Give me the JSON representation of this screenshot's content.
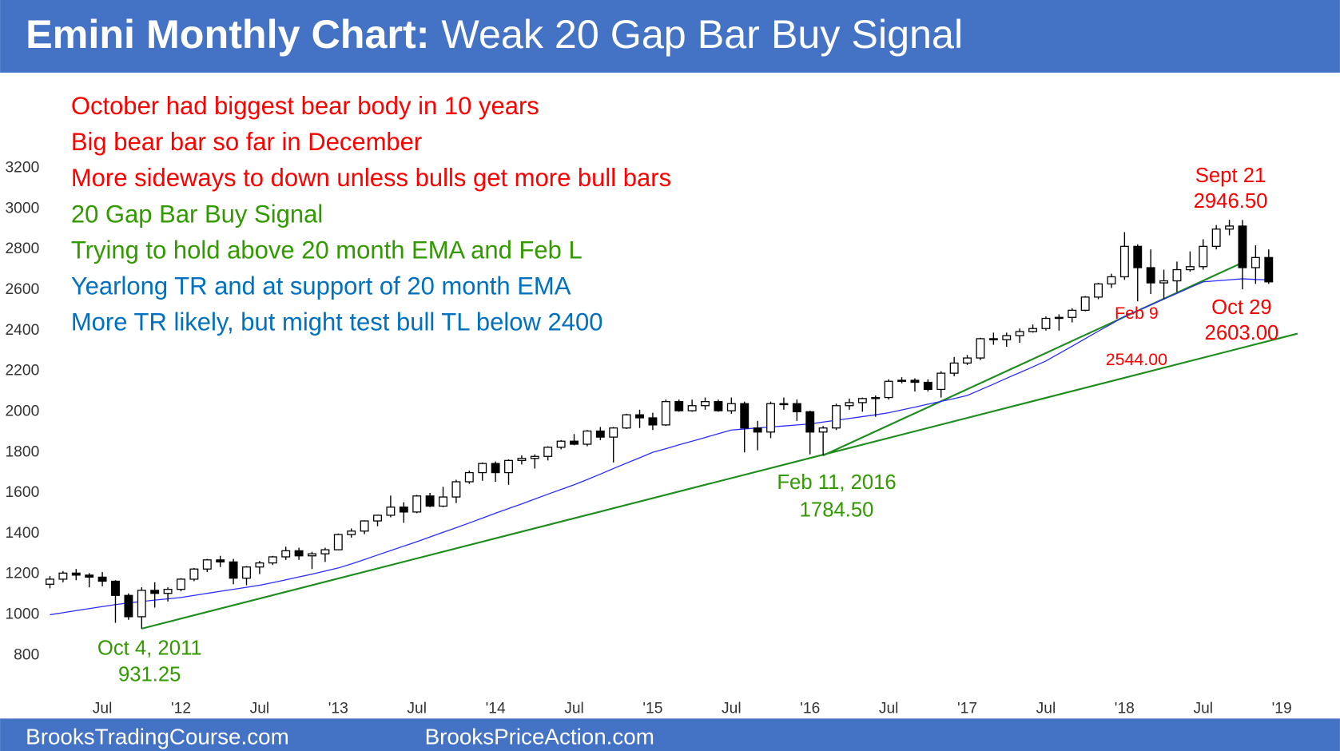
{
  "chart_data": {
    "type": "candlestick",
    "title": "Emini Monthly Chart:",
    "subtitle": "Weak 20 Gap Bar Buy Signal",
    "footer": [
      "BrooksTradingCourse.com",
      "BrooksPriceAction.com"
    ],
    "notes": [
      {
        "text": "October had biggest bear body in 10 years",
        "color": "#ff0000"
      },
      {
        "text": "Big bear bar so far in December",
        "color": "#ff0000"
      },
      {
        "text": "More sideways to down unless bulls get more bull bars",
        "color": "#ff0000"
      },
      {
        "text": "20 Gap Bar Buy Signal",
        "color": "#339900"
      },
      {
        "text": "Trying to hold above 20 month EMA and Feb L",
        "color": "#339900"
      },
      {
        "text": "Yearlong TR and at support of 20 month EMA",
        "color": "#0070c0"
      },
      {
        "text": "More TR likely, but might test bull TL below 2400",
        "color": "#0070c0"
      }
    ],
    "annotations": [
      {
        "lines": [
          "Sept 21",
          "2946.50"
        ],
        "color": "#ff0000"
      },
      {
        "lines": [
          "Oct 29",
          "2603.00"
        ],
        "color": "#ff0000"
      },
      {
        "lines": [
          "Feb 9",
          "2544.00"
        ],
        "color": "#ff0000"
      },
      {
        "lines": [
          "Feb 11, 2016",
          "1784.50"
        ],
        "color": "#339900"
      },
      {
        "lines": [
          "Oct 4, 2011",
          "931.25"
        ],
        "color": "#339900"
      }
    ],
    "xlim": [
      2011.0833,
      2019.25
    ],
    "xticks": [
      {
        "value": 2011.5,
        "label": "Jul"
      },
      {
        "value": 2012,
        "label": "'12"
      },
      {
        "value": 2012.5,
        "label": "Jul"
      },
      {
        "value": 2013,
        "label": "'13"
      },
      {
        "value": 2013.5,
        "label": "Jul"
      },
      {
        "value": 2014,
        "label": "'14"
      },
      {
        "value": 2014.5,
        "label": "Jul"
      },
      {
        "value": 2015,
        "label": "'15"
      },
      {
        "value": 2015.5,
        "label": "Jul"
      },
      {
        "value": 2016,
        "label": "'16"
      },
      {
        "value": 2016.5,
        "label": "Jul"
      },
      {
        "value": 2017,
        "label": "'17"
      },
      {
        "value": 2017.5,
        "label": "Jul"
      },
      {
        "value": 2018,
        "label": "'18"
      },
      {
        "value": 2018.5,
        "label": "Jul"
      },
      {
        "value": 2019,
        "label": "'19"
      }
    ],
    "ylim": [
      602,
      3650
    ],
    "yticks": [
      800,
      1000,
      1200,
      1400,
      1600,
      1800,
      2000,
      2200,
      2400,
      2600,
      2800,
      3000,
      3200
    ],
    "x": [
      2011.1667,
      2011.25,
      2011.3333,
      2011.4167,
      2011.5,
      2011.5833,
      2011.6667,
      2011.75,
      2011.8333,
      2011.9167,
      2012.0,
      2012.0833,
      2012.1667,
      2012.25,
      2012.3333,
      2012.4167,
      2012.5,
      2012.5833,
      2012.6667,
      2012.75,
      2012.8333,
      2012.9167,
      2013.0,
      2013.0833,
      2013.1667,
      2013.25,
      2013.3333,
      2013.4167,
      2013.5,
      2013.5833,
      2013.6667,
      2013.75,
      2013.8333,
      2013.9167,
      2014.0,
      2014.0833,
      2014.1667,
      2014.25,
      2014.3333,
      2014.4167,
      2014.5,
      2014.5833,
      2014.6667,
      2014.75,
      2014.8333,
      2014.9167,
      2015.0,
      2015.0833,
      2015.1667,
      2015.25,
      2015.3333,
      2015.4167,
      2015.5,
      2015.5833,
      2015.6667,
      2015.75,
      2015.8333,
      2015.9167,
      2016.0,
      2016.0833,
      2016.1667,
      2016.25,
      2016.3333,
      2016.4167,
      2016.5,
      2016.5833,
      2016.6667,
      2016.75,
      2016.8333,
      2016.9167,
      2017.0,
      2017.0833,
      2017.1667,
      2017.25,
      2017.3333,
      2017.4167,
      2017.5,
      2017.5833,
      2017.6667,
      2017.75,
      2017.8333,
      2017.9167,
      2018.0,
      2018.0833,
      2018.1667,
      2018.25,
      2018.3333,
      2018.4167,
      2018.5,
      2018.5833,
      2018.6667,
      2018.75,
      2018.8333,
      2018.9167
    ],
    "open": [
      1150,
      1175,
      1205,
      1195,
      1185,
      1165,
      1095,
      990,
      1120,
      1105,
      1125,
      1175,
      1225,
      1270,
      1260,
      1180,
      1235,
      1255,
      1285,
      1315,
      1290,
      1300,
      1320,
      1395,
      1412,
      1462,
      1490,
      1530,
      1506,
      1585,
      1535,
      1580,
      1655,
      1700,
      1745,
      1700,
      1760,
      1770,
      1780,
      1825,
      1855,
      1840,
      1905,
      1875,
      1920,
      1985,
      1970,
      1935,
      2050,
      2005,
      2030,
      2050,
      2005,
      2040,
      1920,
      1900,
      2040,
      2040,
      2000,
      1900,
      1920,
      2030,
      2045,
      2065,
      2070,
      2150,
      2155,
      2145,
      2110,
      2190,
      2240,
      2265,
      2360,
      2355,
      2375,
      2395,
      2410,
      2460,
      2465,
      2500,
      2565,
      2630,
      2665,
      2815,
      2710,
      2635,
      2645,
      2700,
      2715,
      2815,
      2900,
      2915,
      2710,
      2760
    ],
    "high": [
      1190,
      1215,
      1225,
      1205,
      1210,
      1170,
      1105,
      1135,
      1160,
      1135,
      1180,
      1230,
      1275,
      1290,
      1275,
      1240,
      1265,
      1290,
      1335,
      1330,
      1310,
      1330,
      1400,
      1425,
      1465,
      1493,
      1587,
      1554,
      1590,
      1600,
      1630,
      1665,
      1710,
      1750,
      1755,
      1765,
      1785,
      1790,
      1830,
      1860,
      1890,
      1910,
      1925,
      1925,
      1990,
      2010,
      1995,
      2060,
      2060,
      2060,
      2070,
      2060,
      2070,
      2050,
      1955,
      2050,
      2070,
      2060,
      2005,
      1930,
      2040,
      2065,
      2070,
      2080,
      2160,
      2170,
      2165,
      2160,
      2200,
      2270,
      2280,
      2365,
      2390,
      2390,
      2410,
      2430,
      2470,
      2480,
      2510,
      2570,
      2635,
      2680,
      2885,
      2825,
      2800,
      2700,
      2740,
      2790,
      2850,
      2920,
      2946.5,
      2945,
      2820,
      2800
    ],
    "low": [
      1130,
      1160,
      1170,
      1135,
      1140,
      960,
      975,
      931.25,
      1035,
      1065,
      1115,
      1165,
      1210,
      1235,
      1150,
      1145,
      1200,
      1245,
      1270,
      1270,
      1225,
      1260,
      1318,
      1380,
      1397,
      1436,
      1480,
      1453,
      1500,
      1530,
      1530,
      1550,
      1645,
      1660,
      1655,
      1640,
      1740,
      1720,
      1760,
      1815,
      1835,
      1830,
      1860,
      1750,
      1915,
      1920,
      1910,
      1930,
      2000,
      2000,
      2010,
      2000,
      1990,
      1800,
      1810,
      1870,
      2010,
      1955,
      1790,
      1784.5,
      1910,
      2010,
      2000,
      1975,
      2060,
      2140,
      2100,
      2100,
      2070,
      2175,
      2230,
      2255,
      2330,
      2320,
      2340,
      2390,
      2400,
      2400,
      2440,
      2495,
      2555,
      2610,
      2650,
      2544,
      2580,
      2555,
      2590,
      2690,
      2700,
      2800,
      2870,
      2603,
      2630,
      2630
    ],
    "close": [
      1175,
      1205,
      1195,
      1185,
      1165,
      1095,
      990,
      1120,
      1105,
      1125,
      1175,
      1225,
      1270,
      1260,
      1180,
      1235,
      1255,
      1285,
      1315,
      1290,
      1300,
      1320,
      1395,
      1412,
      1462,
      1490,
      1530,
      1506,
      1585,
      1535,
      1580,
      1655,
      1700,
      1745,
      1700,
      1760,
      1770,
      1780,
      1825,
      1855,
      1840,
      1905,
      1875,
      1920,
      1985,
      1970,
      1935,
      2050,
      2005,
      2030,
      2050,
      2005,
      2040,
      1920,
      1900,
      2040,
      2040,
      2000,
      1900,
      1920,
      2030,
      2045,
      2065,
      2070,
      2150,
      2155,
      2145,
      2110,
      2190,
      2240,
      2265,
      2360,
      2355,
      2375,
      2395,
      2410,
      2460,
      2465,
      2500,
      2565,
      2630,
      2665,
      2815,
      2710,
      2635,
      2645,
      2700,
      2715,
      2815,
      2900,
      2915,
      2710,
      2760,
      2640
    ],
    "ema": {
      "color": "#2b2bff",
      "values": [
        1000,
        1010,
        1020,
        1030,
        1040,
        1050,
        1058,
        1065,
        1072,
        1078,
        1085,
        1095,
        1105,
        1115,
        1125,
        1135,
        1145,
        1158,
        1172,
        1186,
        1200,
        1215,
        1230,
        1250,
        1272,
        1294,
        1316,
        1338,
        1360,
        1383,
        1406,
        1429,
        1452,
        1476,
        1500,
        1523,
        1546,
        1570,
        1594,
        1617,
        1640,
        1666,
        1693,
        1720,
        1747,
        1773,
        1800,
        1818,
        1837,
        1855,
        1873,
        1892,
        1910,
        1915,
        1920,
        1925,
        1930,
        1935,
        1940,
        1949,
        1958,
        1967,
        1976,
        1985,
        1995,
        2009,
        2023,
        2037,
        2051,
        2065,
        2080,
        2108,
        2136,
        2165,
        2193,
        2221,
        2250,
        2287,
        2323,
        2360,
        2397,
        2433,
        2470,
        2498,
        2527,
        2555,
        2583,
        2612,
        2640,
        2645,
        2650,
        2655,
        2652,
        2650
      ]
    },
    "trendlines": [
      {
        "color": "#1e8c1e",
        "x": [
          2011.75,
          2019.1
        ],
        "values": [
          931.25,
          2385
        ]
      },
      {
        "color": "#1e8c1e",
        "x": [
          2016.0833,
          2018.75
        ],
        "values": [
          1784.5,
          2735
        ]
      }
    ],
    "header_color": "#4472c4"
  }
}
